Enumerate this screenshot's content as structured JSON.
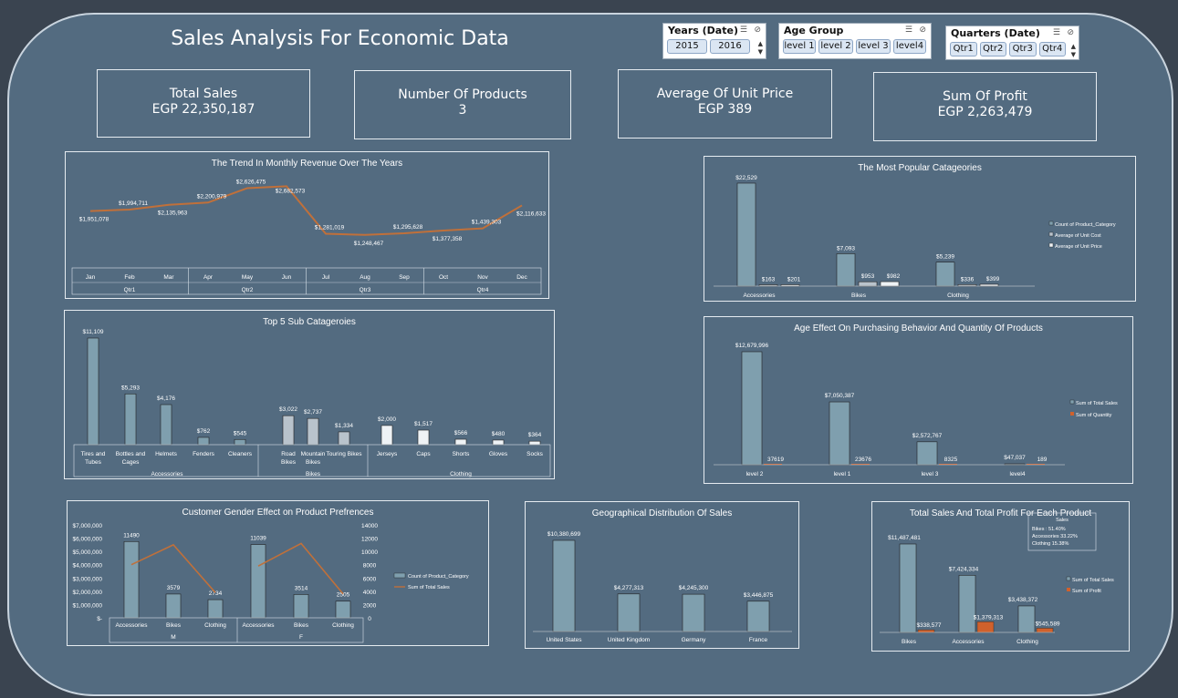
{
  "title": "Sales Analysis For Economic Data",
  "slicers": {
    "years": {
      "title": "Years (Date)",
      "items": [
        "2015",
        "2016"
      ]
    },
    "age": {
      "title": "Age Group",
      "items": [
        "level 1",
        "level 2",
        "level 3",
        "level4"
      ]
    },
    "quarters": {
      "title": "Quarters (Date)",
      "items": [
        "Qtr1",
        "Qtr2",
        "Qtr3",
        "Qtr4"
      ]
    }
  },
  "kpis": [
    {
      "label": "Total Sales",
      "value": "EGP 22,350,187"
    },
    {
      "label": "Number Of Products",
      "value": "3"
    },
    {
      "label": "Average Of Unit Price",
      "value": "EGP 389"
    },
    {
      "label": "Sum Of Profit",
      "value": "EGP 2,263,479"
    }
  ],
  "colors": {
    "bar": "#7f9fae",
    "cost": "#b9c3cc",
    "price": "#eef2f5",
    "line": "#c0703a",
    "orange": "#d0612c"
  },
  "chart_data": [
    {
      "id": "trend",
      "type": "line",
      "title": "The Trend  In Monthly Revenue Over The Years",
      "x": [
        "Jan",
        "Feb",
        "Mar",
        "Apr",
        "May",
        "Jun",
        "Jul",
        "Aug",
        "Sep",
        "Oct",
        "Nov",
        "Dec"
      ],
      "groups": [
        "Qtr1",
        "Qtr2",
        "Qtr3",
        "Qtr4"
      ],
      "values": [
        1951078,
        1994711,
        2135963,
        2200979,
        2626475,
        2682573,
        1281019,
        1248467,
        1295628,
        1377358,
        1439303,
        2116633
      ],
      "labels": [
        "$1,951,078",
        "$1,994,711",
        "$2,135,963",
        "$2,200,979",
        "$2,626,475",
        "$2,682,573",
        "$1,281,019",
        "$1,248,467",
        "$1,295,628",
        "$1,377,358",
        "$1,439,303",
        "$2,116,633"
      ]
    },
    {
      "id": "popular",
      "type": "bar",
      "title": "The Most Popular Catageories",
      "categories": [
        "Accessories",
        "Bikes",
        "Clothing"
      ],
      "series": [
        {
          "name": "Count of Product_Category",
          "values": [
            22529,
            7093,
            5239
          ],
          "labels": [
            "$22,529",
            "$7,093",
            "$5,239"
          ]
        },
        {
          "name": "Average of Unit Cost",
          "values": [
            163,
            953,
            336
          ],
          "labels": [
            "$163",
            "$953",
            "$336"
          ]
        },
        {
          "name": "Average of Unit Price",
          "values": [
            201,
            982,
            399
          ],
          "labels": [
            "$201",
            "$982",
            "$399"
          ]
        }
      ]
    },
    {
      "id": "sub",
      "type": "bar",
      "title": "Top 5 Sub Catageroies",
      "categories": [
        "Tires and Tubes",
        "Bottles and Cages",
        "Helmets",
        "Fenders",
        "Cleaners",
        "Road Bikes",
        "Mountain Bikes",
        "Touring Bikes",
        "Jerseys",
        "Caps",
        "Shorts",
        "Gloves",
        "Socks"
      ],
      "groups": [
        {
          "name": "Accessories",
          "count": 5
        },
        {
          "name": "Bikes",
          "count": 3
        },
        {
          "name": "Clothing",
          "count": 5
        }
      ],
      "values": [
        11109,
        5293,
        4176,
        762,
        545,
        3022,
        2737,
        1334,
        2000,
        1517,
        566,
        480,
        364
      ],
      "labels": [
        "$11,109",
        "$5,293",
        "$4,176",
        "$762",
        "$545",
        "$3,022",
        "$2,737",
        "$1,334",
        "$2,000",
        "$1,517",
        "$566",
        "$480",
        "$364"
      ]
    },
    {
      "id": "age",
      "type": "bar",
      "title": "Age Effect On Purchasing Behavior And Quantity Of Products",
      "categories": [
        "level 2",
        "level 1",
        "level 3",
        "level4"
      ],
      "series": [
        {
          "name": "Sum of Total Sales",
          "values": [
            12679996,
            7050387,
            2572767,
            47037
          ],
          "labels": [
            "$12,679,996",
            "$7,050,387",
            "$2,572,767",
            "$47,037"
          ]
        },
        {
          "name": "Sum of Quantity",
          "values": [
            37619,
            23676,
            8325,
            189
          ],
          "labels": [
            "37619",
            "23676",
            "8325",
            "189"
          ]
        }
      ]
    },
    {
      "id": "gender",
      "type": "bar",
      "title": "Customer Gender Effect on Product Prefrences",
      "categories": [
        "Accessories",
        "Bikes",
        "Clothing",
        "Accessories",
        "Bikes",
        "Clothing"
      ],
      "groups": [
        "M",
        "F"
      ],
      "y_ticks": [
        "$7,000,000",
        "$6,000,000",
        "$5,000,000",
        "$4,000,000",
        "$3,000,000",
        "$2,000,000",
        "$1,000,000",
        "$-"
      ],
      "y2_ticks": [
        "14000",
        "12000",
        "10000",
        "8000",
        "6000",
        "4000",
        "2000",
        "0"
      ],
      "ylim": [
        0,
        7000000
      ],
      "y2lim": [
        0,
        14000
      ],
      "series": [
        {
          "name": "Count of Product_Category",
          "values": [
            11490,
            3579,
            2734,
            11039,
            3514,
            2505
          ],
          "labels": [
            "11490",
            "3579",
            "2734",
            "11039",
            "3514",
            "2505"
          ]
        },
        {
          "name": "Sum of Total Sales",
          "type": "line",
          "values": [
            4000000,
            5500000,
            1900000,
            3900000,
            5600000,
            1800000
          ]
        }
      ]
    },
    {
      "id": "geo",
      "type": "bar",
      "title": "Geographical Distribution Of Sales",
      "categories": [
        "United States",
        "United Kingdom",
        "Germany",
        "France"
      ],
      "values": [
        10380699,
        4277313,
        4245300,
        3446875
      ],
      "labels": [
        "$10,380,699",
        "$4,277,313",
        "$4,245,300",
        "$3,446,875"
      ]
    },
    {
      "id": "product",
      "type": "bar",
      "title": "Total Sales And Total Profit For Each Product",
      "categories": [
        "Bikes",
        "Accessories",
        "Clothing"
      ],
      "series": [
        {
          "name": "Sum of Total Sales",
          "values": [
            11487481,
            7424334,
            3438372
          ],
          "labels": [
            "$11,487,481",
            "$7,424,334",
            "$3,438,372"
          ]
        },
        {
          "name": "Sum of Profit",
          "values": [
            338577,
            1379313,
            545589
          ],
          "labels": [
            "$338,577",
            "$1,379,313",
            "$545,589"
          ]
        }
      ],
      "note": {
        "title": "Sales",
        "lines": [
          "Bikes : 51.40%",
          "Accessories 33.22%",
          "Clothing 15.38%"
        ]
      }
    }
  ]
}
